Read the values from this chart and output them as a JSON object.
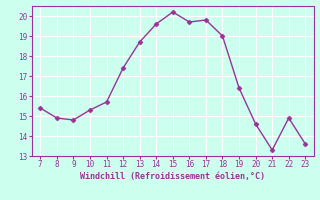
{
  "x": [
    7,
    8,
    9,
    10,
    11,
    12,
    13,
    14,
    15,
    16,
    17,
    18,
    19,
    20,
    21,
    22,
    23
  ],
  "y": [
    15.4,
    14.9,
    14.8,
    15.3,
    15.7,
    17.4,
    18.7,
    19.6,
    20.2,
    19.7,
    19.8,
    19.0,
    16.4,
    14.6,
    13.3,
    14.9,
    13.6
  ],
  "line_color": "#993399",
  "marker": "D",
  "marker_size": 2.5,
  "line_width": 1.0,
  "background_color": "#ccffee",
  "grid_color": "#aaddcc",
  "xlabel": "Windchill (Refroidissement éolien,°C)",
  "xlabel_color": "#993399",
  "tick_color": "#993399",
  "spine_color": "#993399",
  "xlim": [
    6.5,
    23.5
  ],
  "ylim": [
    13,
    20.5
  ],
  "yticks": [
    13,
    14,
    15,
    16,
    17,
    18,
    19,
    20
  ],
  "xticks": [
    7,
    8,
    9,
    10,
    11,
    12,
    13,
    14,
    15,
    16,
    17,
    18,
    19,
    20,
    21,
    22,
    23
  ]
}
